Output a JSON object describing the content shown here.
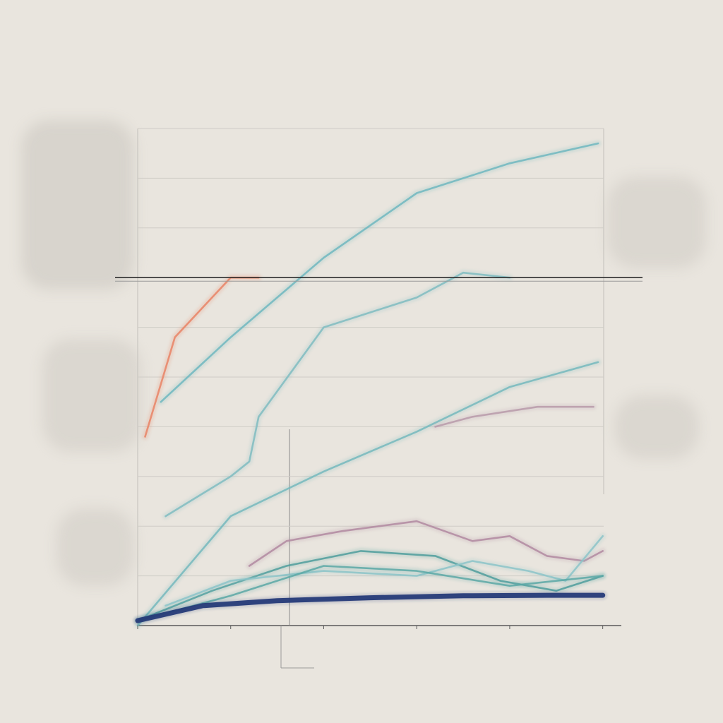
{
  "chart_data": {
    "type": "line",
    "title": "",
    "subtitle": "",
    "caption": "",
    "xlabel": "",
    "ylabel": "",
    "x": [
      0,
      1,
      2,
      3,
      4,
      5
    ],
    "xlim": [
      0,
      5.2
    ],
    "ylim": [
      0,
      100
    ],
    "grid": true,
    "legend": "none",
    "reference_line_y": 70,
    "series": [
      {
        "color": "#e98466",
        "points": [
          [
            0.08,
            38
          ],
          [
            0.4,
            58
          ],
          [
            1.0,
            70
          ],
          [
            1.3,
            70
          ]
        ]
      },
      {
        "color": "#6fb7bf",
        "points": [
          [
            0.25,
            45
          ],
          [
            1.0,
            58
          ],
          [
            2.0,
            74
          ],
          [
            3.0,
            87
          ],
          [
            4.0,
            93
          ],
          [
            4.95,
            97
          ]
        ]
      },
      {
        "color": "#7fbcc1",
        "points": [
          [
            0.3,
            22
          ],
          [
            1.0,
            30
          ],
          [
            1.2,
            33
          ],
          [
            1.3,
            42
          ],
          [
            2.0,
            60
          ],
          [
            2.5,
            63
          ],
          [
            3.0,
            66
          ],
          [
            3.5,
            71
          ],
          [
            4.0,
            70
          ]
        ]
      },
      {
        "color": "#74b8bd",
        "points": [
          [
            0.0,
            0
          ],
          [
            1.0,
            22
          ],
          [
            2.0,
            31
          ],
          [
            3.0,
            39
          ],
          [
            4.0,
            48
          ],
          [
            4.95,
            53
          ]
        ]
      },
      {
        "color": "#b79aaa",
        "points": [
          [
            3.2,
            40
          ],
          [
            3.6,
            42
          ],
          [
            4.3,
            44
          ],
          [
            4.9,
            44
          ]
        ]
      },
      {
        "color": "#b28aa1",
        "points": [
          [
            1.2,
            12
          ],
          [
            1.6,
            17
          ],
          [
            2.2,
            19
          ],
          [
            3.0,
            21
          ],
          [
            3.6,
            17
          ],
          [
            4.0,
            18
          ],
          [
            4.4,
            14
          ],
          [
            4.8,
            13
          ],
          [
            5.0,
            15
          ]
        ]
      },
      {
        "color": "#4f9e9c",
        "points": [
          [
            0.0,
            1
          ],
          [
            0.8,
            7
          ],
          [
            1.6,
            12
          ],
          [
            2.4,
            15
          ],
          [
            3.2,
            14
          ],
          [
            3.9,
            9
          ],
          [
            4.5,
            7
          ],
          [
            5.0,
            10
          ]
        ]
      },
      {
        "color": "#8cc4c9",
        "points": [
          [
            0.3,
            4
          ],
          [
            1.0,
            9
          ],
          [
            2.0,
            11
          ],
          [
            3.0,
            10
          ],
          [
            3.6,
            13
          ],
          [
            4.2,
            11
          ],
          [
            4.6,
            9
          ],
          [
            5.0,
            18
          ]
        ]
      },
      {
        "color": "#5aa8a6",
        "points": [
          [
            0.0,
            1
          ],
          [
            1.0,
            6
          ],
          [
            2.0,
            12
          ],
          [
            3.0,
            11
          ],
          [
            4.0,
            8
          ],
          [
            5.0,
            10
          ]
        ]
      },
      {
        "color": "#263b78",
        "points": [
          [
            0.0,
            1
          ],
          [
            0.7,
            4
          ],
          [
            1.5,
            5
          ],
          [
            2.5,
            5.6
          ],
          [
            3.5,
            6
          ],
          [
            4.4,
            6.1
          ],
          [
            5.0,
            6.1
          ]
        ]
      }
    ]
  }
}
